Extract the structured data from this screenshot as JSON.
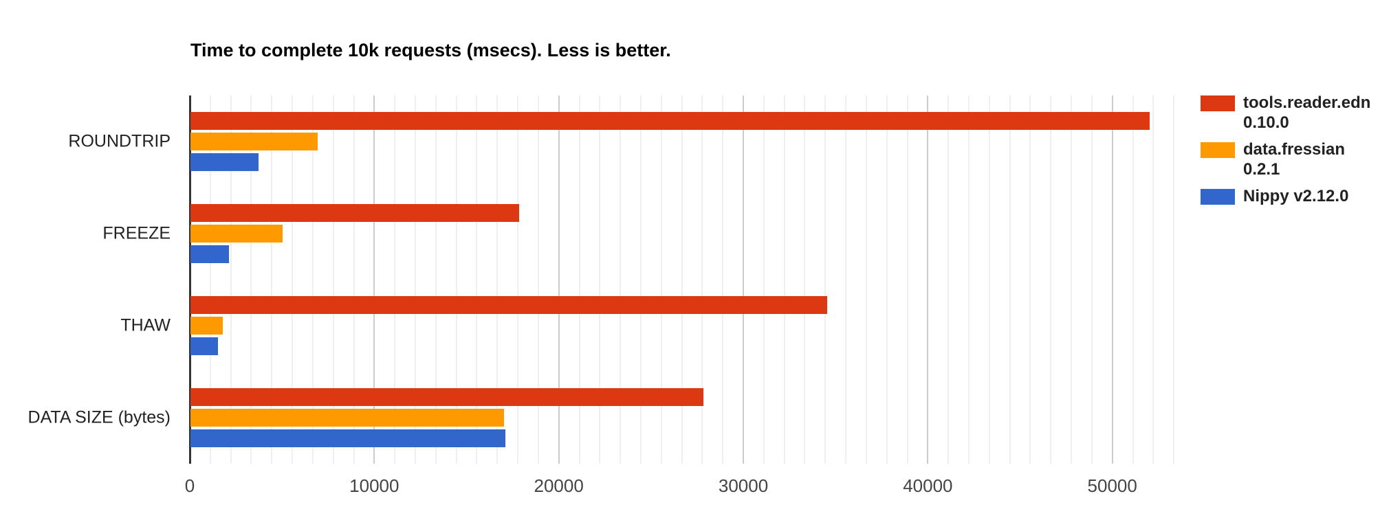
{
  "title": "Time to complete 10k requests (msecs). Less is better.",
  "colors": {
    "background": "#ffffff",
    "series_red": "#DC3912",
    "series_orange": "#FF9900",
    "series_blue": "#3366CC",
    "axis_line": "#333333",
    "gridline_major": "#cccccc",
    "gridline_minor": "#efefef",
    "title_text": "#000000",
    "category_text": "#222222",
    "tick_text": "#444444",
    "legend_text": "#222222"
  },
  "chart_data": {
    "type": "bar",
    "orientation": "horizontal",
    "title": "Time to complete 10k requests (msecs). Less is better.",
    "xlabel": "",
    "ylabel": "",
    "categories": [
      "ROUNDTRIP",
      "FREEZE",
      "THAW",
      "DATA SIZE (bytes)"
    ],
    "series": [
      {
        "name": "tools.reader.edn 0.10.0",
        "legend_lines": [
          "tools.reader.edn",
          "0.10.0"
        ],
        "color": "#DC3912",
        "values": [
          52000,
          17800,
          34500,
          27800
        ]
      },
      {
        "name": "data.fressian 0.2.1",
        "legend_lines": [
          "data.fressian",
          "0.2.1"
        ],
        "color": "#FF9900",
        "values": [
          6900,
          5000,
          1750,
          17000
        ]
      },
      {
        "name": "Nippy v2.12.0",
        "legend_lines": [
          "Nippy v2.12.0"
        ],
        "color": "#3366CC",
        "values": [
          3700,
          2100,
          1500,
          17050
        ]
      }
    ],
    "xlim": [
      0,
      53700
    ],
    "x_ticks": [
      0,
      10000,
      20000,
      30000,
      40000,
      50000
    ],
    "x_tick_labels": [
      "0",
      "10000",
      "20000",
      "30000",
      "40000",
      "50000"
    ],
    "minor_gridline_divisions_per_major": 9,
    "grid": true,
    "legend_position": "right"
  }
}
